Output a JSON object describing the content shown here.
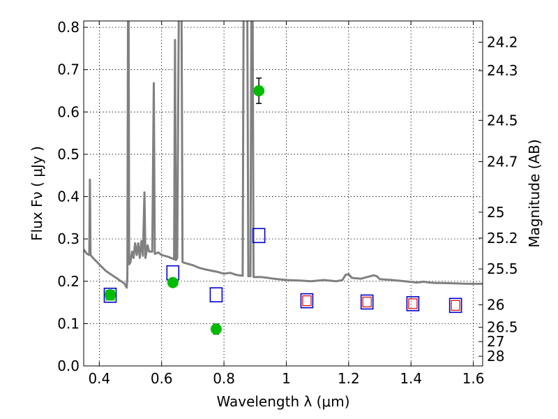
{
  "chart_data": {
    "type": "scatter",
    "title": "",
    "xlabel": "Wavelength  λ (μm)",
    "ylabel": "Flux  Fν  ( μJy )",
    "ylabel_right": "Magnitude (AB)",
    "xlim": [
      0.35,
      1.63
    ],
    "ylim": [
      0.0,
      0.815
    ],
    "grid": true,
    "x_ticks": [
      0.4,
      0.6,
      0.8,
      1.0,
      1.2,
      1.4,
      1.6
    ],
    "x_tick_labels": [
      "0.4",
      "0.6",
      "0.8",
      "1",
      "1.2",
      "1.4",
      "1.6"
    ],
    "y_ticks": [
      0.0,
      0.1,
      0.2,
      0.3,
      0.4,
      0.5,
      0.6,
      0.7,
      0.8
    ],
    "y_tick_labels": [
      "0.0",
      "0.1",
      "0.2",
      "0.3",
      "0.4",
      "0.5",
      "0.6",
      "0.7",
      "0.8"
    ],
    "right_axis_ticks": [
      {
        "label": "24.2",
        "flux": 0.7648
      },
      {
        "label": "24.3",
        "flux": 0.6975
      },
      {
        "label": "24.5",
        "flux": 0.5802
      },
      {
        "label": "24.7",
        "flux": 0.4826
      },
      {
        "label": "25",
        "flux": 0.3631
      },
      {
        "label": "25.2",
        "flux": 0.302
      },
      {
        "label": "25.5",
        "flux": 0.2291
      },
      {
        "label": "26",
        "flux": 0.1445
      },
      {
        "label": "26.5",
        "flux": 0.0912
      },
      {
        "label": "27",
        "flux": 0.0575
      },
      {
        "label": "28",
        "flux": 0.0229
      }
    ],
    "series": [
      {
        "kind": "line",
        "color": "#808080",
        "points": [
          [
            0.35,
            0.275
          ],
          [
            0.36,
            0.265
          ],
          [
            0.368,
            0.262
          ],
          [
            0.37,
            0.44
          ],
          [
            0.372,
            0.262
          ],
          [
            0.38,
            0.255
          ],
          [
            0.4,
            0.24
          ],
          [
            0.42,
            0.225
          ],
          [
            0.44,
            0.215
          ],
          [
            0.46,
            0.205
          ],
          [
            0.48,
            0.195
          ],
          [
            0.488,
            0.185
          ],
          [
            0.49,
            0.21
          ],
          [
            0.492,
            0.83
          ],
          [
            0.494,
            0.83
          ],
          [
            0.496,
            0.24
          ],
          [
            0.5,
            0.245
          ],
          [
            0.505,
            0.27
          ],
          [
            0.51,
            0.255
          ],
          [
            0.515,
            0.29
          ],
          [
            0.52,
            0.262
          ],
          [
            0.525,
            0.29
          ],
          [
            0.53,
            0.255
          ],
          [
            0.535,
            0.295
          ],
          [
            0.54,
            0.26
          ],
          [
            0.545,
            0.41
          ],
          [
            0.548,
            0.255
          ],
          [
            0.555,
            0.285
          ],
          [
            0.56,
            0.27
          ],
          [
            0.57,
            0.27
          ],
          [
            0.575,
            0.668
          ],
          [
            0.578,
            0.265
          ],
          [
            0.59,
            0.268
          ],
          [
            0.6,
            0.262
          ],
          [
            0.62,
            0.258
          ],
          [
            0.63,
            0.255
          ],
          [
            0.64,
            0.252
          ],
          [
            0.643,
            0.77
          ],
          [
            0.646,
            0.25
          ],
          [
            0.65,
            0.255
          ],
          [
            0.655,
            0.83
          ],
          [
            0.658,
            0.83
          ],
          [
            0.661,
            0.83
          ],
          [
            0.664,
            0.83
          ],
          [
            0.667,
            0.245
          ],
          [
            0.68,
            0.242
          ],
          [
            0.7,
            0.238
          ],
          [
            0.72,
            0.232
          ],
          [
            0.74,
            0.228
          ],
          [
            0.76,
            0.225
          ],
          [
            0.78,
            0.222
          ],
          [
            0.8,
            0.218
          ],
          [
            0.82,
            0.22
          ],
          [
            0.84,
            0.215
          ],
          [
            0.86,
            0.213
          ],
          [
            0.863,
            0.83
          ],
          [
            0.875,
            0.83
          ],
          [
            0.878,
            0.212
          ],
          [
            0.885,
            0.212
          ],
          [
            0.888,
            0.83
          ],
          [
            0.892,
            0.83
          ],
          [
            0.895,
            0.21
          ],
          [
            0.92,
            0.21
          ],
          [
            0.96,
            0.206
          ],
          [
            1.0,
            0.203
          ],
          [
            1.04,
            0.202
          ],
          [
            1.08,
            0.2
          ],
          [
            1.12,
            0.203
          ],
          [
            1.16,
            0.2
          ],
          [
            1.18,
            0.203
          ],
          [
            1.19,
            0.215
          ],
          [
            1.2,
            0.217
          ],
          [
            1.21,
            0.208
          ],
          [
            1.24,
            0.206
          ],
          [
            1.28,
            0.214
          ],
          [
            1.29,
            0.212
          ],
          [
            1.3,
            0.205
          ],
          [
            1.34,
            0.203
          ],
          [
            1.38,
            0.2
          ],
          [
            1.42,
            0.197
          ],
          [
            1.44,
            0.199
          ],
          [
            1.46,
            0.197
          ],
          [
            1.48,
            0.196
          ],
          [
            1.5,
            0.196
          ],
          [
            1.54,
            0.195
          ],
          [
            1.58,
            0.194
          ],
          [
            1.63,
            0.194
          ]
        ]
      },
      {
        "kind": "observed",
        "color": "#00bb00",
        "points": [
          {
            "x": 0.435,
            "y": 0.168,
            "err": 0
          },
          {
            "x": 0.636,
            "y": 0.197,
            "err": 0
          },
          {
            "x": 0.775,
            "y": 0.087,
            "err": 0.012
          },
          {
            "x": 0.912,
            "y": 0.65,
            "err": 0.03
          }
        ]
      },
      {
        "kind": "model-photometry",
        "color": "#0000cc",
        "points": [
          {
            "x": 0.435,
            "y": 0.167
          },
          {
            "x": 0.636,
            "y": 0.22
          },
          {
            "x": 0.775,
            "y": 0.168
          },
          {
            "x": 0.912,
            "y": 0.308
          },
          {
            "x": 1.066,
            "y": 0.154
          },
          {
            "x": 1.259,
            "y": 0.151
          },
          {
            "x": 1.406,
            "y": 0.147
          },
          {
            "x": 1.543,
            "y": 0.143
          }
        ]
      },
      {
        "kind": "model-photometry-inner",
        "color": "#dd0000",
        "points": [
          {
            "x": 1.066,
            "y": 0.154
          },
          {
            "x": 1.259,
            "y": 0.151
          },
          {
            "x": 1.406,
            "y": 0.147
          },
          {
            "x": 1.543,
            "y": 0.143
          }
        ]
      },
      {
        "kind": "model-photometry-inner",
        "color": "#00bb00",
        "points": [
          {
            "x": 0.435,
            "y": 0.167
          }
        ]
      }
    ]
  }
}
